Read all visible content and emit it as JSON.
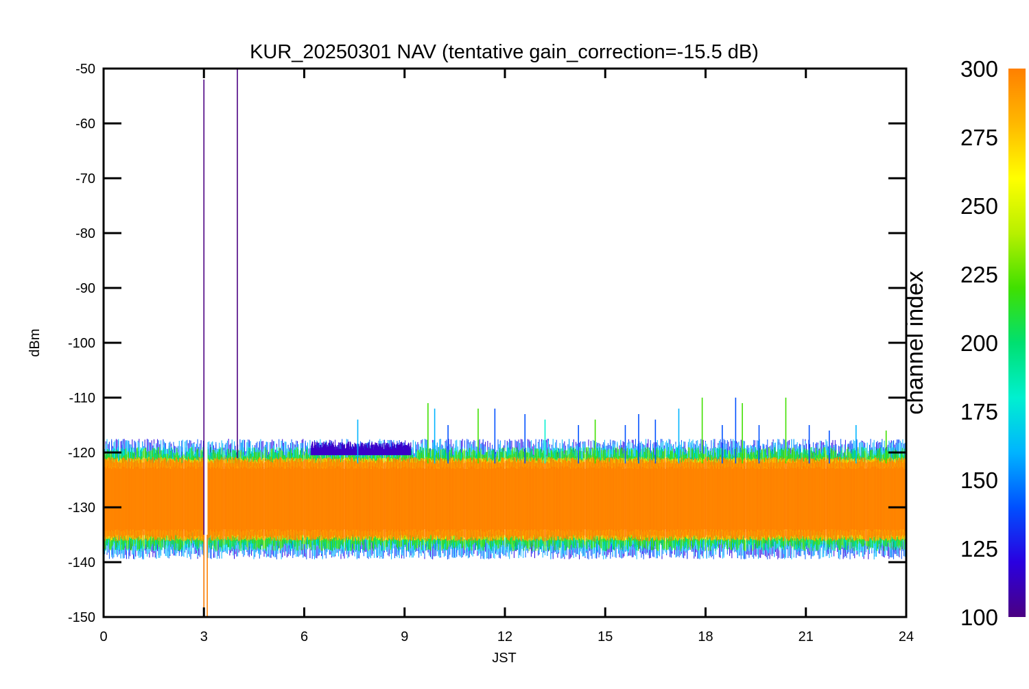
{
  "chart_data": {
    "type": "line",
    "title": "KUR_20250301 NAV (tentative gain_correction=-15.5 dB)",
    "xlabel": "JST",
    "ylabel": "dBm",
    "xlim": [
      0,
      24
    ],
    "ylim": [
      -150,
      -50
    ],
    "xticks": [
      "0",
      "3",
      "6",
      "9",
      "12",
      "15",
      "18",
      "21",
      "24"
    ],
    "yticks": [
      "-50",
      "-60",
      "-70",
      "-80",
      "-90",
      "-100",
      "-110",
      "-120",
      "-130",
      "-140",
      "-150"
    ],
    "colorbar": {
      "label": "channel index",
      "range": [
        100,
        300
      ],
      "ticks": [
        "300",
        "275",
        "250",
        "225",
        "200",
        "175",
        "150",
        "125",
        "100"
      ],
      "colors": [
        "#4b0082",
        "#2a00e0",
        "#0050ff",
        "#00b4ff",
        "#00f0d0",
        "#00e070",
        "#40e000",
        "#b8f000",
        "#ffff00",
        "#ffb800",
        "#ff8000"
      ]
    },
    "series_summary": {
      "core_band_dBm": [
        -135,
        -122
      ],
      "core_center_dBm": -129,
      "typical_upper_envelope_dBm": -120,
      "typical_lower_envelope_dBm": -137,
      "elevated_low_channel_interval_JST": [
        6.2,
        9.2
      ],
      "elevated_low_channel_level_dBm": -118,
      "data_gap_JST": [
        3.0,
        3.1
      ]
    },
    "spikes": [
      {
        "x": 3.0,
        "y_top": -52,
        "y_bottom": -150,
        "color": "#4b0082"
      },
      {
        "x": 4.0,
        "y_top": -50,
        "y_bottom": -121,
        "color": "#4b0082"
      },
      {
        "x": 3.0,
        "y_top": -135,
        "y_bottom": -150,
        "color": "#ff8000"
      },
      {
        "x": 3.1,
        "y_top": -135,
        "y_bottom": -150,
        "color": "#ff8000"
      },
      {
        "x": 7.6,
        "y_top": -114,
        "y_bottom": -122,
        "color": "#00b4ff"
      },
      {
        "x": 9.7,
        "y_top": -111,
        "y_bottom": -122,
        "color": "#40e000"
      },
      {
        "x": 9.9,
        "y_top": -112,
        "y_bottom": -122,
        "color": "#00b4ff"
      },
      {
        "x": 10.3,
        "y_top": -115,
        "y_bottom": -122,
        "color": "#0050ff"
      },
      {
        "x": 11.2,
        "y_top": -112,
        "y_bottom": -122,
        "color": "#40e000"
      },
      {
        "x": 11.7,
        "y_top": -112,
        "y_bottom": -122,
        "color": "#0050ff"
      },
      {
        "x": 12.6,
        "y_top": -113,
        "y_bottom": -122,
        "color": "#0050ff"
      },
      {
        "x": 13.2,
        "y_top": -114,
        "y_bottom": -122,
        "color": "#00f0d0"
      },
      {
        "x": 14.2,
        "y_top": -115,
        "y_bottom": -122,
        "color": "#0050ff"
      },
      {
        "x": 14.7,
        "y_top": -114,
        "y_bottom": -122,
        "color": "#40e000"
      },
      {
        "x": 15.6,
        "y_top": -115,
        "y_bottom": -122,
        "color": "#0050ff"
      },
      {
        "x": 16.0,
        "y_top": -113,
        "y_bottom": -122,
        "color": "#0050ff"
      },
      {
        "x": 16.5,
        "y_top": -114,
        "y_bottom": -122,
        "color": "#0050ff"
      },
      {
        "x": 17.2,
        "y_top": -112,
        "y_bottom": -122,
        "color": "#00b4ff"
      },
      {
        "x": 17.9,
        "y_top": -110,
        "y_bottom": -122,
        "color": "#40e000"
      },
      {
        "x": 18.5,
        "y_top": -115,
        "y_bottom": -122,
        "color": "#0050ff"
      },
      {
        "x": 18.9,
        "y_top": -110,
        "y_bottom": -122,
        "color": "#0050ff"
      },
      {
        "x": 19.1,
        "y_top": -111,
        "y_bottom": -122,
        "color": "#40e000"
      },
      {
        "x": 19.6,
        "y_top": -115,
        "y_bottom": -122,
        "color": "#0050ff"
      },
      {
        "x": 20.4,
        "y_top": -110,
        "y_bottom": -122,
        "color": "#40e000"
      },
      {
        "x": 21.1,
        "y_top": -115,
        "y_bottom": -122,
        "color": "#0050ff"
      },
      {
        "x": 21.7,
        "y_top": -116,
        "y_bottom": -122,
        "color": "#0050ff"
      },
      {
        "x": 22.5,
        "y_top": -115,
        "y_bottom": -122,
        "color": "#00b4ff"
      },
      {
        "x": 23.4,
        "y_top": -116,
        "y_bottom": -122,
        "color": "#40e000"
      }
    ]
  }
}
